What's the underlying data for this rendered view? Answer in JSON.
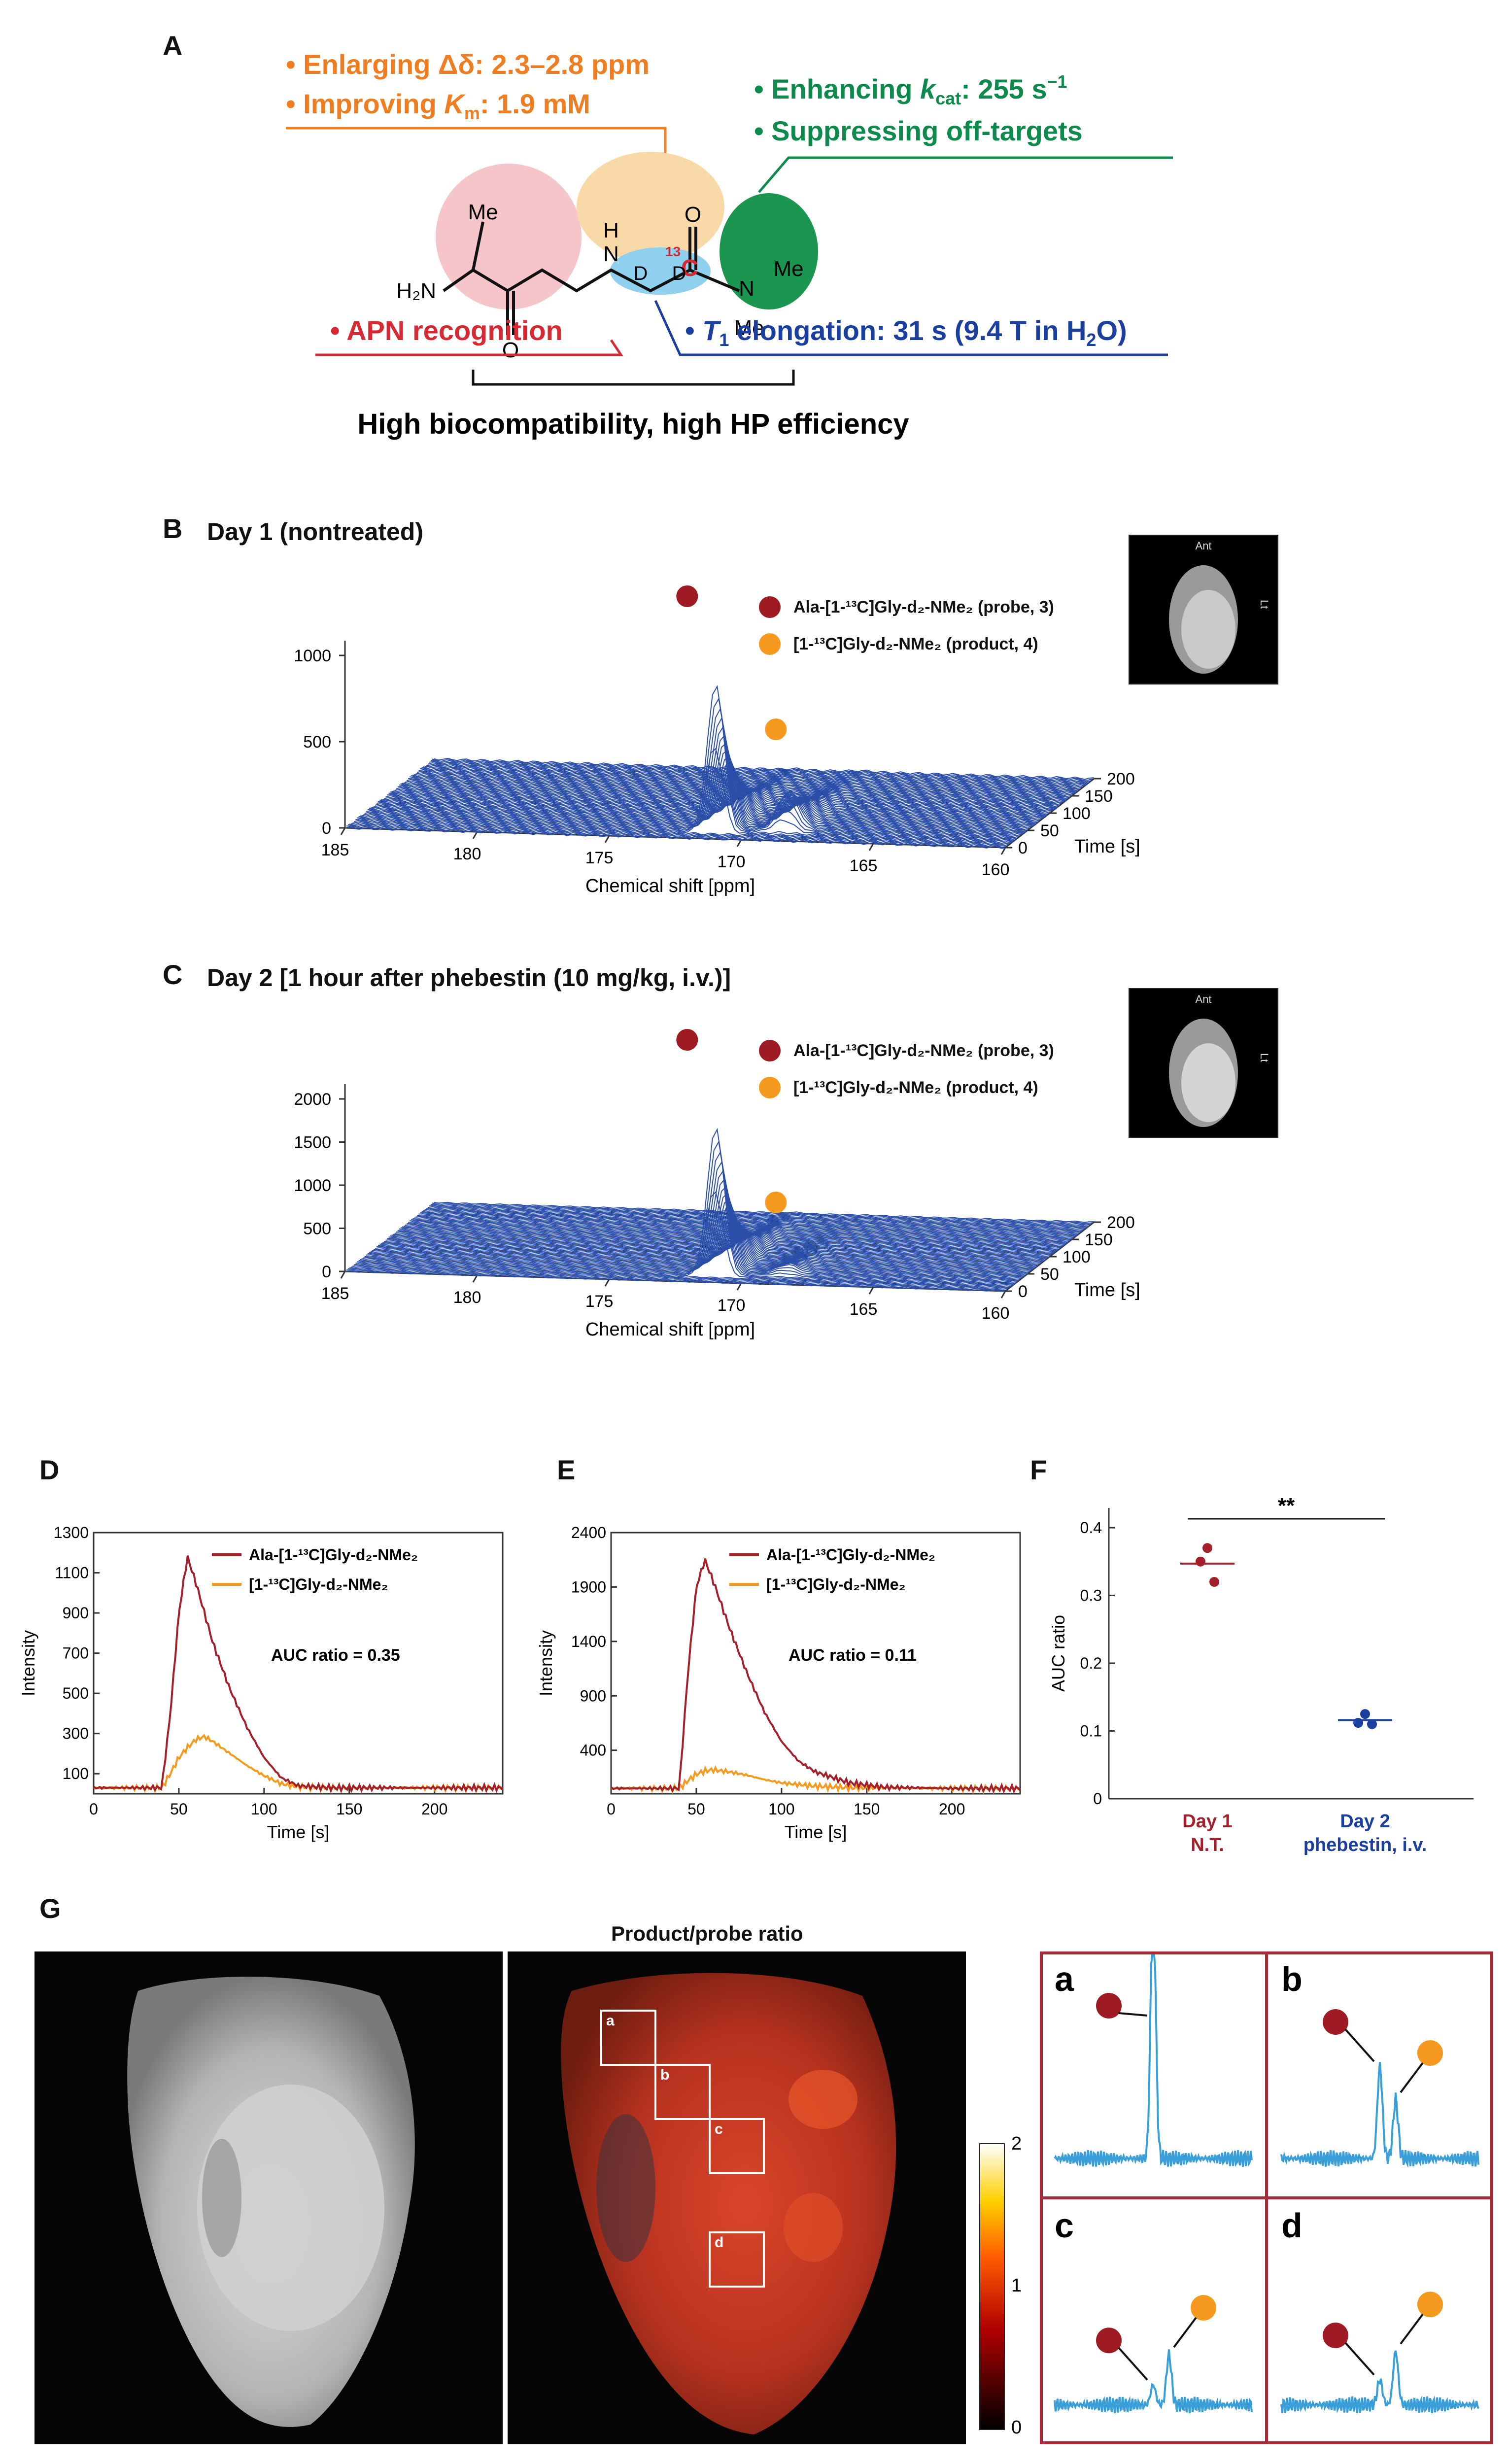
{
  "panels": {
    "A": {
      "label": "A"
    },
    "B": {
      "label": "B",
      "title": "Day 1 (nontreated)"
    },
    "C": {
      "label": "C",
      "title": "Day 2 [1 hour after phebestin (10 mg/kg, i.v.)]"
    },
    "D": {
      "label": "D"
    },
    "E": {
      "label": "E"
    },
    "F": {
      "label": "F"
    },
    "G": {
      "label": "G",
      "title": "Product/probe ratio"
    }
  },
  "panelA": {
    "orange1": "• Enlarging Δδ: 2.3–2.8 ppm",
    "orange2_pre": "• Improving ",
    "orange2_k": "K",
    "orange2_sub": "m",
    "orange2_post": ": 1.9 mM",
    "green1_pre": "• Enhancing ",
    "green1_k": "k",
    "green1_sub": "cat",
    "green1_post": ": 255 s",
    "green1_sup": "−1",
    "green2": "• Suppressing off-targets",
    "red1": "• APN recognition",
    "blue_pre": "• ",
    "blue_t": "T",
    "blue_sub": "1",
    "blue_post1": " elongation: 31 s (9.4 T in H",
    "blue_sub2": "2",
    "blue_post2": "O)",
    "bottom": "High biocompatibility, high HP efficiency",
    "molecule": {
      "me1": "Me",
      "h2n": "H₂N",
      "o1": "O",
      "nh": "N",
      "h": "H",
      "o2": "O",
      "c13_sup": "13",
      "c13": "C",
      "d1": "D",
      "d2": "D",
      "n": "N",
      "me2": "Me",
      "me3": "Me"
    },
    "colors": {
      "orange": "#ef7d22",
      "green": "#0e8a4d",
      "red": "#d62b35",
      "blue": "#1b3f9e",
      "pink": "#f6c5c9",
      "peach": "#f9d9a8",
      "cyan": "#8fd0ee",
      "dgreen": "#1a9650"
    }
  },
  "legend": {
    "probe": "Ala-[1-¹³C]Gly-d₂-NMe₂ (probe, 3)",
    "product": "[1-¹³C]Gly-d₂-NMe₂ (product, 4)",
    "probe_color": "#9e1b24",
    "product_color": "#f59a1e"
  },
  "inset": {
    "ant": "Ant",
    "lt": "Lt"
  },
  "stack3d": [
    {
      "zticks": [
        "1000",
        "500",
        "0"
      ],
      "xticks": [
        "185",
        "180",
        "175",
        "170",
        "165",
        "160"
      ],
      "yticks": [
        "200",
        "150",
        "100",
        "50",
        "0"
      ],
      "xlabel": "Chemical shift [ppm]",
      "ylabel": "Time [s]",
      "probe_peak": 1000,
      "product_peak": 280
    },
    {
      "zticks": [
        "2000",
        "1500",
        "1000",
        "500",
        "0"
      ],
      "xticks": [
        "185",
        "180",
        "175",
        "170",
        "165",
        "160"
      ],
      "yticks": [
        "200",
        "150",
        "100",
        "50",
        "0"
      ],
      "xlabel": "Chemical shift [ppm]",
      "ylabel": "Time [s]",
      "probe_peak": 2000,
      "product_peak": 120
    }
  ],
  "chart_data": [
    {
      "type": "line",
      "panel": "D",
      "xlabel": "Time [s]",
      "ylabel": "Intensity",
      "xlim": [
        0,
        240
      ],
      "ylim": [
        0,
        1300
      ],
      "xticks": [
        "0",
        "50",
        "100",
        "150",
        "200"
      ],
      "yticks": [
        "100",
        "300",
        "500",
        "700",
        "900",
        "1100",
        "1300"
      ],
      "annotation": "AUC ratio = 0.35",
      "series": [
        {
          "name": "Ala-[1-¹³C]Gly-d₂-NMe₂",
          "color": "#a31f29",
          "x": [
            0,
            20,
            40,
            45,
            50,
            55,
            60,
            70,
            80,
            90,
            100,
            110,
            120,
            140,
            160,
            200,
            240
          ],
          "y": [
            30,
            30,
            30,
            400,
            900,
            1180,
            1050,
            750,
            520,
            330,
            180,
            80,
            40,
            30,
            30,
            30,
            30
          ]
        },
        {
          "name": "[1-¹³C]Gly-d₂-NMe₂",
          "color": "#f59a1e",
          "x": [
            0,
            20,
            40,
            45,
            50,
            55,
            60,
            65,
            70,
            80,
            90,
            100,
            110,
            120,
            140,
            200,
            240
          ],
          "y": [
            30,
            30,
            30,
            100,
            180,
            230,
            270,
            285,
            260,
            200,
            140,
            90,
            50,
            35,
            30,
            30,
            30
          ]
        }
      ]
    },
    {
      "type": "line",
      "panel": "E",
      "xlabel": "Time [s]",
      "ylabel": "Intensity",
      "xlim": [
        0,
        240
      ],
      "ylim": [
        0,
        2400
      ],
      "xticks": [
        "0",
        "50",
        "100",
        "150",
        "200"
      ],
      "yticks": [
        "400",
        "900",
        "1400",
        "1900",
        "2400"
      ],
      "annotation": "AUC ratio = 0.11",
      "series": [
        {
          "name": "Ala-[1-¹³C]Gly-d₂-NMe₂",
          "color": "#a31f29",
          "x": [
            0,
            20,
            40,
            45,
            50,
            55,
            60,
            70,
            80,
            90,
            100,
            110,
            120,
            140,
            160,
            200,
            240
          ],
          "y": [
            50,
            50,
            50,
            1100,
            1900,
            2150,
            1950,
            1500,
            1100,
            750,
            480,
            300,
            200,
            100,
            60,
            50,
            50
          ]
        },
        {
          "name": "[1-¹³C]Gly-d₂-NMe₂",
          "color": "#f59a1e",
          "x": [
            0,
            20,
            40,
            45,
            50,
            55,
            60,
            70,
            80,
            90,
            100,
            120,
            140,
            200,
            240
          ],
          "y": [
            50,
            50,
            50,
            120,
            180,
            210,
            220,
            200,
            170,
            130,
            100,
            70,
            55,
            50,
            50
          ]
        }
      ]
    },
    {
      "type": "scatter",
      "panel": "F",
      "ylabel": "AUC ratio",
      "ylim": [
        0,
        0.4
      ],
      "yticks": [
        "0",
        "0.1",
        "0.2",
        "0.3",
        "0.4"
      ],
      "significance": "**",
      "categories": [
        {
          "line1": "Day 1",
          "line2": "N.T.",
          "color": "#a31f29",
          "values": [
            0.37,
            0.35,
            0.32
          ],
          "mean": 0.347
        },
        {
          "line1": "Day 2",
          "line2": "phebestin, i.v.",
          "color": "#1b3f9e",
          "values": [
            0.125,
            0.112,
            0.11
          ],
          "mean": 0.116
        }
      ]
    }
  ],
  "panelG": {
    "rois": [
      "a",
      "b",
      "c",
      "d"
    ],
    "colorbar": {
      "ticks": [
        "2",
        "1",
        "0"
      ]
    },
    "cells": [
      "a",
      "b",
      "c",
      "d"
    ],
    "frame_color": "#a82a38",
    "line_color": "#3a9fd8"
  }
}
